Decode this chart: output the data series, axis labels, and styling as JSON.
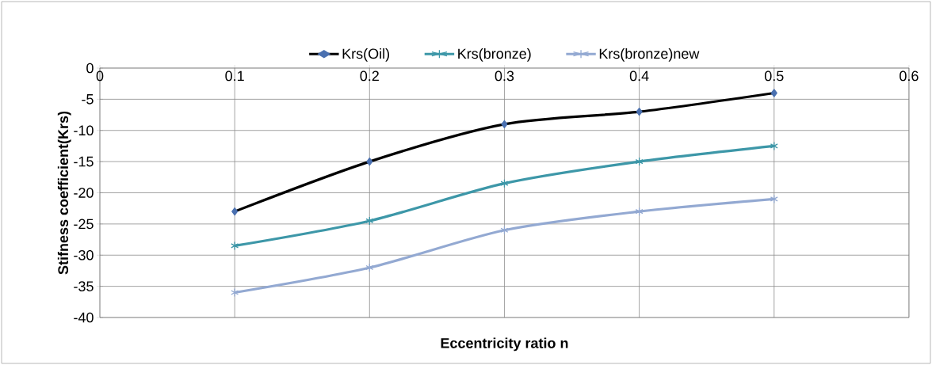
{
  "chart_data": {
    "type": "line",
    "xlabel": "Eccentricity ratio n",
    "ylabel": "Stifness coefficient(Krs)",
    "x": [
      0.1,
      0.2,
      0.3,
      0.4,
      0.5
    ],
    "series": [
      {
        "name": "Krs(Oil)",
        "color": "#000000",
        "marker": "diamond",
        "values": [
          -23,
          -15,
          -9,
          -7,
          -4
        ]
      },
      {
        "name": "Krs(bronze)",
        "color": "#3d97a8",
        "marker": "cross",
        "values": [
          -28.5,
          -24.5,
          -18.5,
          -15,
          -12.5
        ]
      },
      {
        "name": "Krs(bronze)new",
        "color": "#93a9d2",
        "marker": "cross",
        "values": [
          -36,
          -32,
          -26,
          -23,
          -21
        ]
      }
    ],
    "xlim": [
      0,
      0.6
    ],
    "ylim": [
      -40,
      0
    ],
    "xticks": [
      0,
      0.1,
      0.2,
      0.3,
      0.4,
      0.5,
      0.6
    ],
    "yticks": [
      0,
      -5,
      -10,
      -15,
      -20,
      -25,
      -30,
      -35,
      -40
    ],
    "grid": true,
    "legend": "top",
    "line_style": "solid"
  }
}
